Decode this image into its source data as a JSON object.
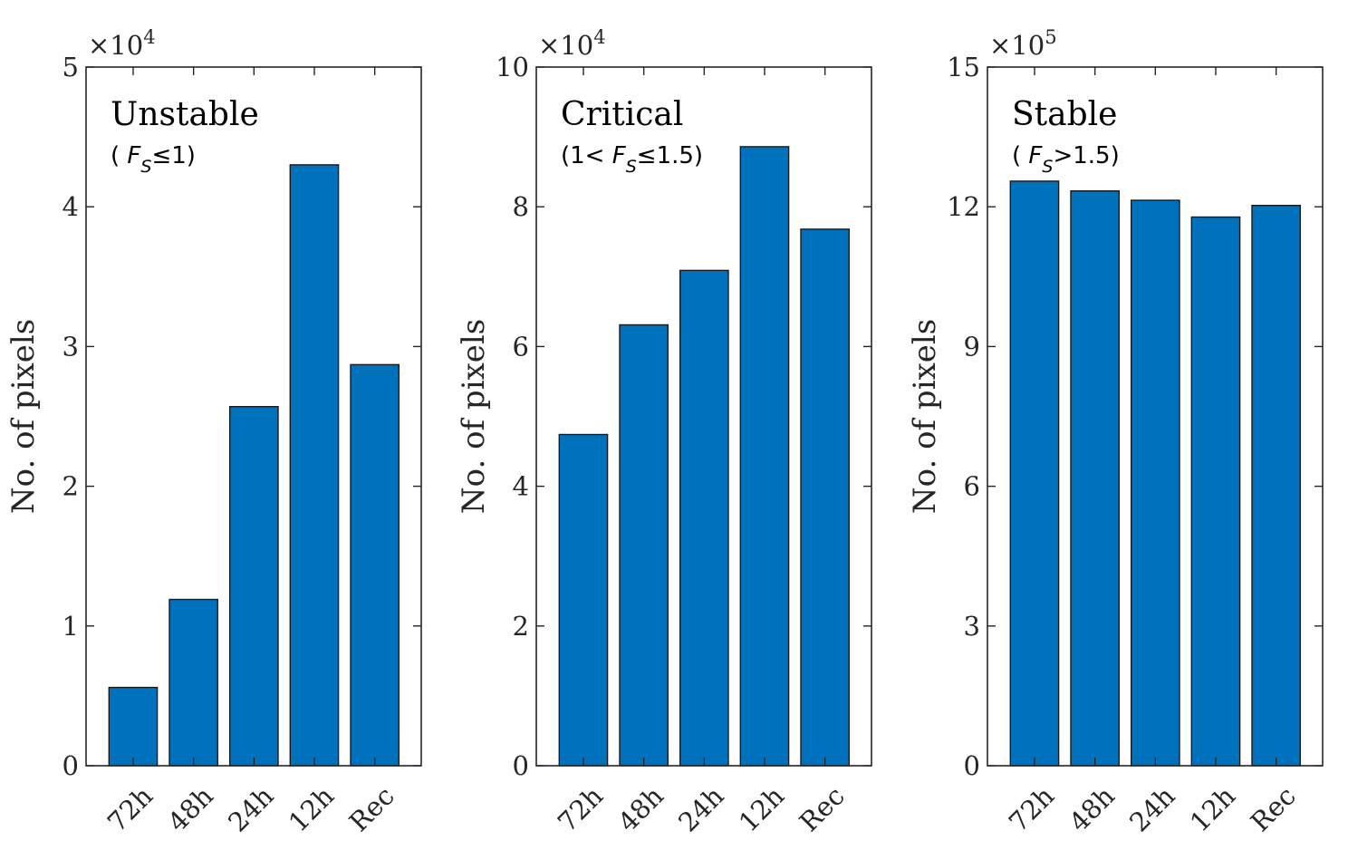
{
  "colors": {
    "bar_fill": "#0072BD",
    "axis": "#262626"
  },
  "chart_data": [
    {
      "type": "bar",
      "title": "Unstable",
      "condition": {
        "prefix": "( ",
        "variable": "F",
        "subscript": "S",
        "suffix": "≤1)"
      },
      "categories": [
        "72h",
        "48h",
        "24h",
        "12h",
        "Rec"
      ],
      "values": [
        5600,
        11900,
        25700,
        43000,
        28700
      ],
      "ylabel": "No. of pixels",
      "ylim": [
        0,
        50000
      ],
      "yticks": [
        0,
        10000,
        20000,
        30000,
        40000,
        50000
      ],
      "ytick_labels": [
        "0",
        "1",
        "2",
        "3",
        "4",
        "5"
      ],
      "exponent": {
        "prefix": "×10",
        "power": "4"
      }
    },
    {
      "type": "bar",
      "title": "Critical",
      "condition": {
        "prefix": "(1< ",
        "variable": "F",
        "subscript": "S",
        "suffix": "≤1.5)"
      },
      "categories": [
        "72h",
        "48h",
        "24h",
        "12h",
        "Rec"
      ],
      "values": [
        47400,
        63100,
        70900,
        88600,
        76800
      ],
      "ylabel": "No. of pixels",
      "ylim": [
        0,
        100000
      ],
      "yticks": [
        0,
        20000,
        40000,
        60000,
        80000,
        100000
      ],
      "ytick_labels": [
        "0",
        "2",
        "4",
        "6",
        "8",
        "10"
      ],
      "exponent": {
        "prefix": "×10",
        "power": "4"
      }
    },
    {
      "type": "bar",
      "title": "Stable",
      "condition": {
        "prefix": "( ",
        "variable": "F",
        "subscript": "S",
        "suffix": ">1.5)"
      },
      "categories": [
        "72h",
        "48h",
        "24h",
        "12h",
        "Rec"
      ],
      "values": [
        1255000,
        1234000,
        1214000,
        1178000,
        1203000
      ],
      "ylabel": "No. of pixels",
      "ylim": [
        0,
        1500000
      ],
      "yticks": [
        0,
        300000,
        600000,
        900000,
        1200000,
        1500000
      ],
      "ytick_labels": [
        "0",
        "3",
        "6",
        "9",
        "12",
        "15"
      ],
      "exponent": {
        "prefix": "×10",
        "power": "5"
      }
    }
  ]
}
